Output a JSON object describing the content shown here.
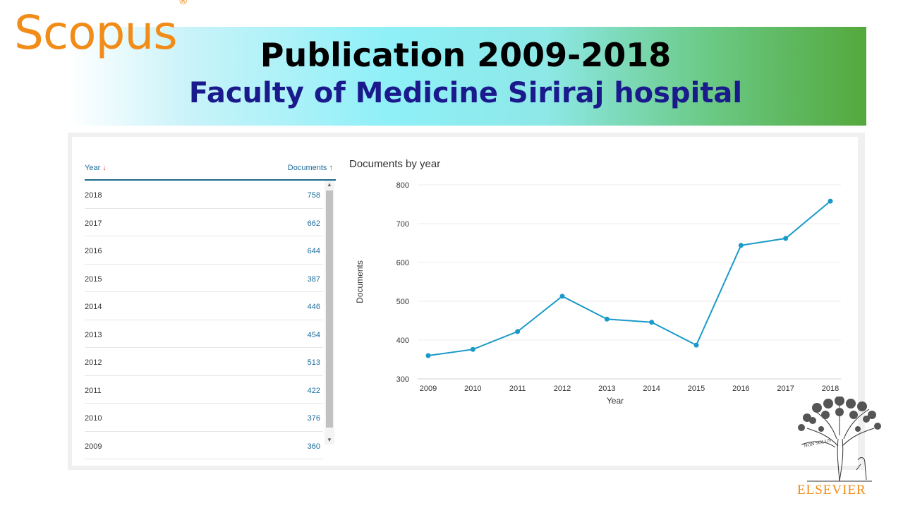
{
  "header": {
    "logo_text": "Scopus",
    "logo_mark": "®",
    "title": "Publication 2009-2018",
    "subtitle": "Faculty of  Medicine Siriraj hospital"
  },
  "table": {
    "col_year": "Year",
    "col_docs": "Documents",
    "rows": [
      {
        "year": "2018",
        "docs": "758"
      },
      {
        "year": "2017",
        "docs": "662"
      },
      {
        "year": "2016",
        "docs": "644"
      },
      {
        "year": "2015",
        "docs": "387"
      },
      {
        "year": "2014",
        "docs": "446"
      },
      {
        "year": "2013",
        "docs": "454"
      },
      {
        "year": "2012",
        "docs": "513"
      },
      {
        "year": "2011",
        "docs": "422"
      },
      {
        "year": "2010",
        "docs": "376"
      },
      {
        "year": "2009",
        "docs": "360"
      }
    ]
  },
  "chart_data": {
    "type": "line",
    "title": "Documents by year",
    "xlabel": "Year",
    "ylabel": "Documents",
    "x": [
      "2009",
      "2010",
      "2011",
      "2012",
      "2013",
      "2014",
      "2015",
      "2016",
      "2017",
      "2018"
    ],
    "series": [
      {
        "values": [
          360,
          376,
          422,
          513,
          454,
          446,
          387,
          644,
          662,
          758
        ]
      }
    ],
    "ylim": [
      300,
      800
    ],
    "yticks": [
      300,
      400,
      500,
      600,
      700,
      800
    ],
    "grid": true,
    "color": "#1a9ac9"
  },
  "footer": {
    "publisher": "ELSEVIER",
    "motto": "NON SOLUS"
  }
}
